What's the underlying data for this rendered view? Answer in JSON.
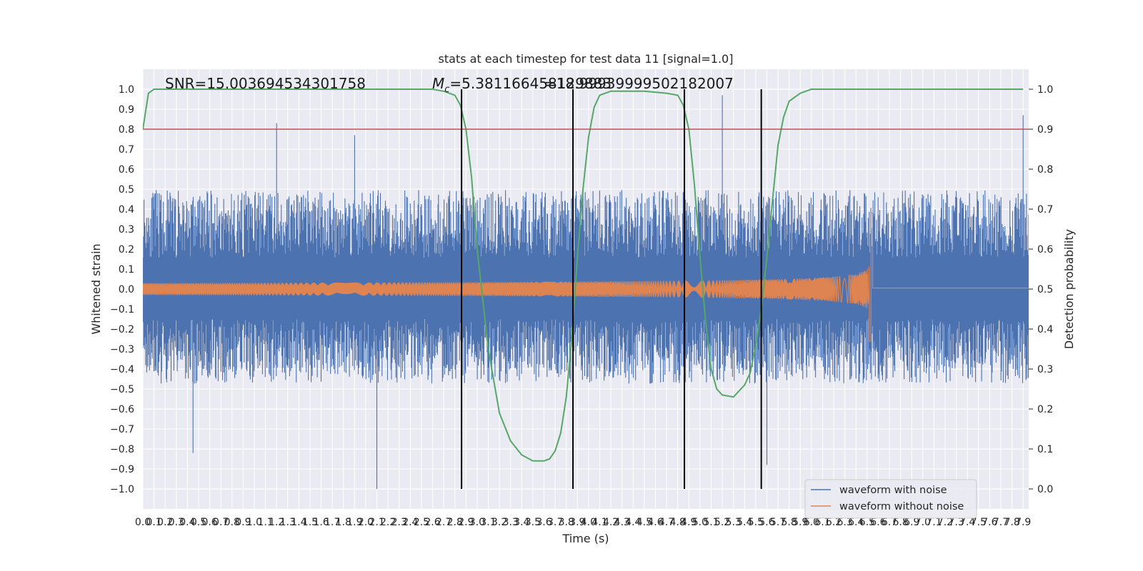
{
  "chart_data": {
    "type": "line",
    "title": "stats at each timestep for test data 11 [signal=1.0]",
    "xlabel": "Time (s)",
    "ylabel": "Whitened strain",
    "y2label": "Detection probability",
    "xlim": [
      0.0,
      7.95
    ],
    "ylim": [
      -1.1,
      1.1
    ],
    "y2lim": [
      -0.05,
      1.05
    ],
    "x_tick_values": [
      0.0,
      0.1,
      0.2,
      0.3,
      0.4,
      0.5,
      0.6,
      0.7,
      0.8,
      0.9,
      1.0,
      1.1,
      1.2,
      1.3,
      1.4,
      1.5,
      1.6,
      1.7,
      1.8,
      1.9,
      2.0,
      2.1,
      2.2,
      2.3,
      2.4,
      2.5,
      2.6,
      2.7,
      2.8,
      2.9,
      3.0,
      3.1,
      3.2,
      3.3,
      3.4,
      3.5,
      3.6,
      3.7,
      3.8,
      3.9,
      4.0,
      4.1,
      4.2,
      4.3,
      4.4,
      4.5,
      4.6,
      4.7,
      4.8,
      4.9,
      5.0,
      5.1,
      5.2,
      5.3,
      5.4,
      5.5,
      5.6,
      5.7,
      5.8,
      5.9,
      6.0,
      6.1,
      6.2,
      6.3,
      6.4,
      6.5,
      6.6,
      6.7,
      6.8,
      6.9,
      7.0,
      7.1,
      7.2,
      7.3,
      7.4,
      7.5,
      7.6,
      7.7,
      7.8,
      7.9
    ],
    "x_tick_labels": [
      "0.0",
      "0.1",
      "0.2",
      "0.3",
      "0.4",
      "0.5",
      "0.6",
      "0.7",
      "0.8",
      "0.9",
      "1.0",
      "1.1",
      "1.2",
      "1.3",
      "1.4",
      "1.5",
      "1.6",
      "1.7",
      "1.8",
      "1.9",
      "2.0",
      "2.1",
      "2.2",
      "2.3",
      "2.4",
      "2.5",
      "2.6",
      "2.7",
      "2.8",
      "2.9",
      "3.0",
      "3.1",
      "3.2",
      "3.3",
      "3.4",
      "3.5",
      "3.6",
      "3.7",
      "3.8",
      "3.9",
      "4.0",
      "4.1",
      "4.2",
      "4.3",
      "4.4",
      "4.5",
      "4.6",
      "4.7",
      "4.8",
      "4.9",
      "5.0",
      "5.1",
      "5.2",
      "5.3",
      "5.4",
      "5.5",
      "5.6",
      "5.7",
      "5.8",
      "5.9",
      "6.0",
      "6.1",
      "6.2",
      "6.3",
      "6.4",
      "6.5",
      "6.6",
      "6.7",
      "6.8",
      "6.9",
      "7.0",
      "7.1",
      "7.2",
      "7.3",
      "7.4",
      "7.5",
      "7.6",
      "7.7",
      "7.8",
      "7.9"
    ],
    "y_tick_values": [
      -1.0,
      -0.9,
      -0.8,
      -0.7,
      -0.6,
      -0.5,
      -0.4,
      -0.3,
      -0.2,
      -0.1,
      0.0,
      0.1,
      0.2,
      0.3,
      0.4,
      0.5,
      0.6,
      0.7,
      0.8,
      0.9,
      1.0
    ],
    "y_tick_labels": [
      "−1.0",
      "−0.9",
      "−0.8",
      "−0.7",
      "−0.6",
      "−0.5",
      "−0.4",
      "−0.3",
      "−0.2",
      "−0.1",
      "0.0",
      "0.1",
      "0.2",
      "0.3",
      "0.4",
      "0.5",
      "0.6",
      "0.7",
      "0.8",
      "0.9",
      "1.0"
    ],
    "y2_tick_values": [
      0.0,
      0.1,
      0.2,
      0.3,
      0.4,
      0.5,
      0.6,
      0.7,
      0.8,
      0.9,
      1.0
    ],
    "y2_tick_labels": [
      "0.0",
      "0.1",
      "0.2",
      "0.3",
      "0.4",
      "0.5",
      "0.6",
      "0.7",
      "0.8",
      "0.9",
      "1.0"
    ],
    "annotations": {
      "snr": "SNR=15.003694534301758",
      "mc_symbol": "M",
      "mc_subscript": "c",
      "mc_value": "=5.381166458129883",
      "overlap": "=18.99939999502182007"
    },
    "series": [
      {
        "name": "waveform with noise",
        "color": "#4c72b0",
        "axis": "left",
        "kind": "noise",
        "envelope_upper": 0.45,
        "envelope_lower": -0.43,
        "notable_spikes": [
          [
            1.2,
            0.83
          ],
          [
            1.9,
            0.77
          ],
          [
            2.1,
            -1.0
          ],
          [
            0.45,
            -0.82
          ],
          [
            5.2,
            0.97
          ],
          [
            5.6,
            -0.88
          ],
          [
            7.9,
            0.87
          ]
        ]
      },
      {
        "name": "waveform without noise",
        "color": "#dd8452",
        "axis": "left",
        "kind": "chirp",
        "start_amplitude": 0.03,
        "peak_time": 6.55,
        "peak_value": 0.38,
        "trough_value": -0.26,
        "post_merger_value": 0.005
      },
      {
        "color": "#55a868",
        "axis": "right",
        "x": [
          0.0,
          0.05,
          0.1,
          0.5,
          1.0,
          1.5,
          2.0,
          2.5,
          2.6,
          2.7,
          2.8,
          2.85,
          2.9,
          2.95,
          3.0,
          3.1,
          3.2,
          3.3,
          3.4,
          3.5,
          3.6,
          3.65,
          3.7,
          3.75,
          3.8,
          3.85,
          3.9,
          3.95,
          4.0,
          4.05,
          4.1,
          4.2,
          4.5,
          4.7,
          4.8,
          4.85,
          4.9,
          4.95,
          5.0,
          5.05,
          5.1,
          5.15,
          5.2,
          5.3,
          5.4,
          5.45,
          5.5,
          5.55,
          5.6,
          5.65,
          5.7,
          5.75,
          5.8,
          5.9,
          6.0,
          6.5,
          7.0,
          7.5,
          7.9
        ],
        "y": [
          0.9,
          0.99,
          1.0,
          1.0,
          1.0,
          1.0,
          1.0,
          1.0,
          1.0,
          0.995,
          0.985,
          0.96,
          0.9,
          0.78,
          0.6,
          0.35,
          0.19,
          0.12,
          0.085,
          0.07,
          0.07,
          0.075,
          0.095,
          0.14,
          0.23,
          0.38,
          0.58,
          0.75,
          0.88,
          0.955,
          0.985,
          0.995,
          0.995,
          0.99,
          0.985,
          0.96,
          0.9,
          0.76,
          0.58,
          0.42,
          0.3,
          0.25,
          0.235,
          0.23,
          0.26,
          0.29,
          0.36,
          0.45,
          0.58,
          0.72,
          0.86,
          0.93,
          0.97,
          0.99,
          1.0,
          1.0,
          1.0,
          1.0,
          1.0
        ]
      },
      {
        "color": "#c44e52",
        "axis": "right",
        "x": [
          0.0,
          7.95
        ],
        "y": [
          0.9,
          0.9
        ]
      }
    ],
    "vlines": [
      2.86,
      3.86,
      4.86,
      5.55
    ],
    "grid": true,
    "legend_position": "lower right"
  }
}
